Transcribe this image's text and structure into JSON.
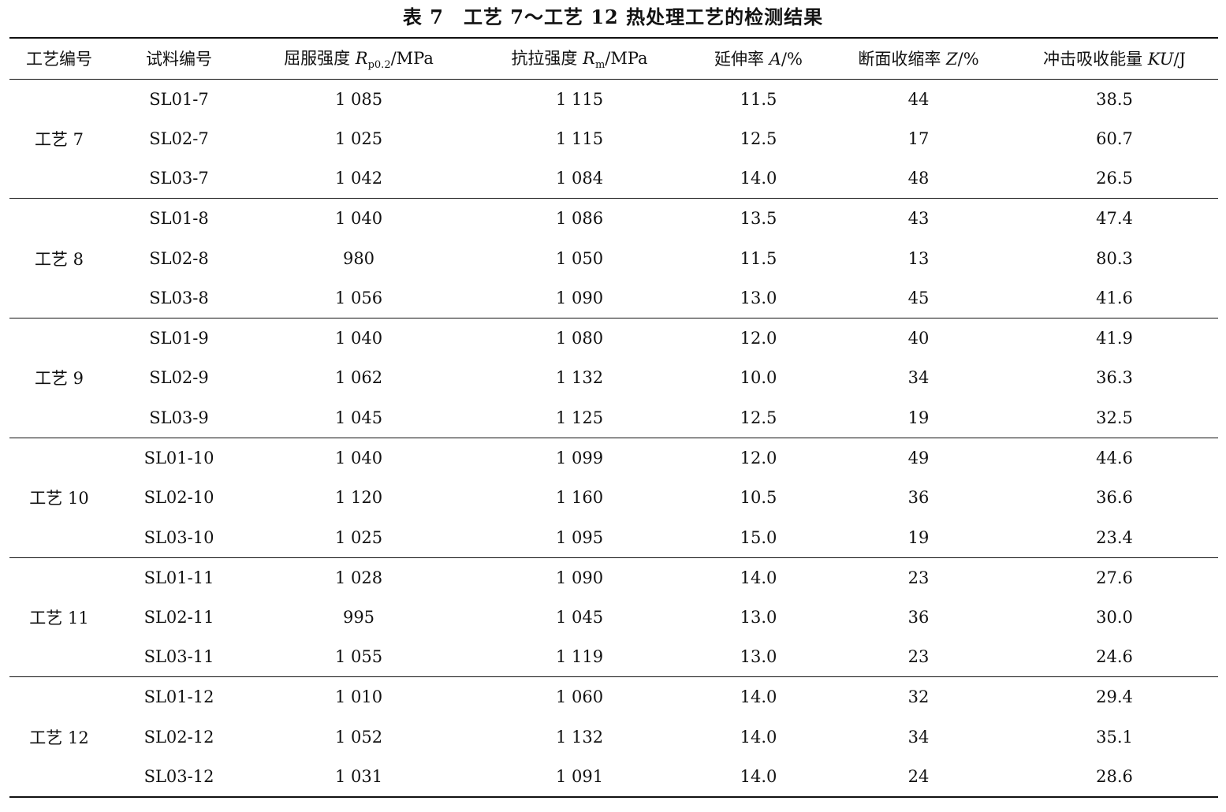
{
  "title": "表 7　工艺 7～工艺 12 热处理工艺的检测结果",
  "table": {
    "header": [
      {
        "text": "工艺编号"
      },
      {
        "text": "试料编号"
      },
      {
        "text": "屈服强度 ",
        "symbol": "R",
        "sub": "p0.2",
        "unit": "/MPa"
      },
      {
        "text": "抗拉强度 ",
        "symbol": "R",
        "sub": "m",
        "unit": "/MPa"
      },
      {
        "text": "延伸率 ",
        "symbol": "A",
        "unit": "/%"
      },
      {
        "text": "断面收缩率 ",
        "symbol": "Z",
        "unit": "/%"
      },
      {
        "text": "冲击吸收能量 ",
        "symbol": "KU",
        "unit": "/J"
      }
    ],
    "groups": [
      {
        "label": "工艺 7",
        "rows": [
          [
            "SL01-7",
            "1 085",
            "1 115",
            "11.5",
            "44",
            "38.5"
          ],
          [
            "SL02-7",
            "1 025",
            "1 115",
            "12.5",
            "17",
            "60.7"
          ],
          [
            "SL03-7",
            "1 042",
            "1 084",
            "14.0",
            "48",
            "26.5"
          ]
        ]
      },
      {
        "label": "工艺 8",
        "rows": [
          [
            "SL01-8",
            "1 040",
            "1 086",
            "13.5",
            "43",
            "47.4"
          ],
          [
            "SL02-8",
            "980",
            "1 050",
            "11.5",
            "13",
            "80.3"
          ],
          [
            "SL03-8",
            "1 056",
            "1 090",
            "13.0",
            "45",
            "41.6"
          ]
        ]
      },
      {
        "label": "工艺 9",
        "rows": [
          [
            "SL01-9",
            "1 040",
            "1 080",
            "12.0",
            "40",
            "41.9"
          ],
          [
            "SL02-9",
            "1 062",
            "1 132",
            "10.0",
            "34",
            "36.3"
          ],
          [
            "SL03-9",
            "1 045",
            "1 125",
            "12.5",
            "19",
            "32.5"
          ]
        ]
      },
      {
        "label": "工艺 10",
        "rows": [
          [
            "SL01-10",
            "1 040",
            "1 099",
            "12.0",
            "49",
            "44.6"
          ],
          [
            "SL02-10",
            "1 120",
            "1 160",
            "10.5",
            "36",
            "36.6"
          ],
          [
            "SL03-10",
            "1 025",
            "1 095",
            "15.0",
            "19",
            "23.4"
          ]
        ]
      },
      {
        "label": "工艺 11",
        "rows": [
          [
            "SL01-11",
            "1 028",
            "1 090",
            "14.0",
            "23",
            "27.6"
          ],
          [
            "SL02-11",
            "995",
            "1 045",
            "13.0",
            "36",
            "30.0"
          ],
          [
            "SL03-11",
            "1 055",
            "1 119",
            "13.0",
            "23",
            "24.6"
          ]
        ]
      },
      {
        "label": "工艺 12",
        "rows": [
          [
            "SL01-12",
            "1 010",
            "1 060",
            "14.0",
            "32",
            "29.4"
          ],
          [
            "SL02-12",
            "1 052",
            "1 132",
            "14.0",
            "34",
            "35.1"
          ],
          [
            "SL03-12",
            "1 031",
            "1 091",
            "14.0",
            "24",
            "28.6"
          ]
        ]
      }
    ]
  }
}
